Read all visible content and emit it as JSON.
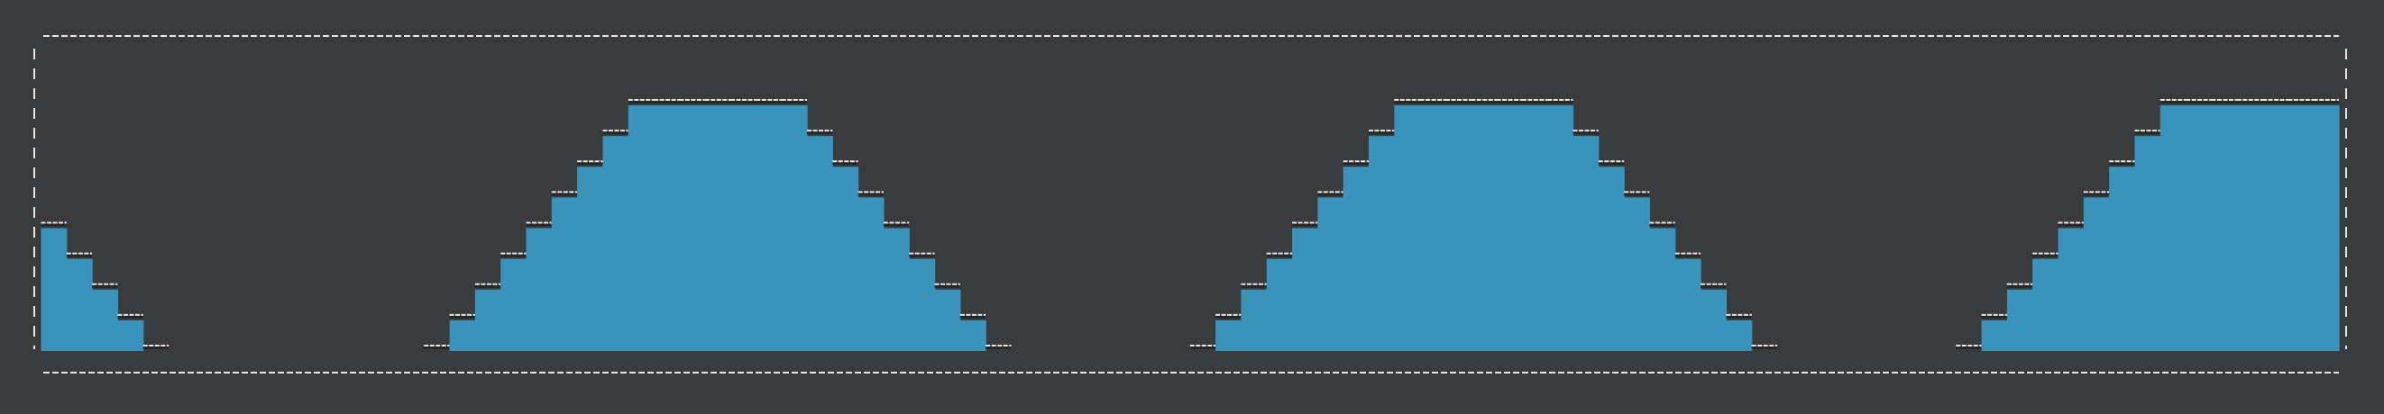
{
  "colors": {
    "background": "#3a3b3d",
    "fill": "#3a93bb",
    "dash": "#e6e6e6",
    "shadow": "#262729"
  },
  "waveform": {
    "type": "stepped-level-plot",
    "level_count": 8,
    "max_level": 8,
    "grid": false,
    "levels": [
      4,
      3,
      2,
      1,
      0,
      -1,
      -1,
      -1,
      -1,
      -1,
      -1,
      -1,
      -1,
      -1,
      -1,
      0,
      1,
      2,
      3,
      4,
      5,
      6,
      7,
      8,
      8,
      8,
      8,
      8,
      8,
      8,
      7,
      6,
      5,
      4,
      3,
      2,
      1,
      0,
      -1,
      -1,
      -1,
      -1,
      -1,
      -1,
      -1,
      0,
      1,
      2,
      3,
      4,
      5,
      6,
      7,
      8,
      8,
      8,
      8,
      8,
      8,
      8,
      7,
      6,
      5,
      4,
      3,
      2,
      1,
      0,
      -1,
      -1,
      -1,
      -1,
      -1,
      -1,
      -1,
      0,
      1,
      2,
      3,
      4,
      5,
      6,
      7,
      8,
      8,
      8,
      8,
      8,
      8,
      8
    ]
  }
}
